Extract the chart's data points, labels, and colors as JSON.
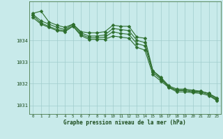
{
  "title": "Graphe pression niveau de la mer (hPa)",
  "background_color": "#c8eaea",
  "grid_color": "#a0cccc",
  "line_color": "#2d6e2d",
  "marker_color": "#2d6e2d",
  "xlim_min": -0.5,
  "xlim_max": 23.5,
  "ylim_min": 1030.6,
  "ylim_max": 1035.8,
  "yticks": [
    1031,
    1032,
    1033,
    1034
  ],
  "xticks": [
    0,
    1,
    2,
    3,
    4,
    5,
    6,
    7,
    8,
    9,
    10,
    11,
    12,
    13,
    14,
    15,
    16,
    17,
    18,
    19,
    20,
    21,
    22,
    23
  ],
  "series": [
    [
      1035.25,
      1035.35,
      1034.85,
      1034.7,
      1034.6,
      1034.75,
      1034.4,
      1034.35,
      1034.35,
      1034.4,
      1034.7,
      1034.65,
      1034.65,
      1034.15,
      1034.1,
      1032.6,
      1032.25,
      1031.85,
      1031.7,
      1031.7,
      1031.65,
      1031.65,
      1031.55,
      1031.3
    ],
    [
      1035.2,
      1034.9,
      1034.75,
      1034.6,
      1034.5,
      1034.75,
      1034.35,
      1034.2,
      1034.2,
      1034.25,
      1034.55,
      1034.5,
      1034.45,
      1034.0,
      1033.9,
      1032.6,
      1032.3,
      1031.9,
      1031.75,
      1031.75,
      1031.7,
      1031.65,
      1031.55,
      1031.35
    ],
    [
      1035.15,
      1034.8,
      1034.65,
      1034.5,
      1034.45,
      1034.68,
      1034.28,
      1034.12,
      1034.12,
      1034.15,
      1034.4,
      1034.32,
      1034.28,
      1033.85,
      1033.75,
      1032.52,
      1032.2,
      1031.85,
      1031.68,
      1031.68,
      1031.62,
      1031.6,
      1031.5,
      1031.25
    ],
    [
      1035.05,
      1034.75,
      1034.6,
      1034.45,
      1034.4,
      1034.65,
      1034.22,
      1034.05,
      1034.05,
      1034.05,
      1034.2,
      1034.15,
      1034.1,
      1033.68,
      1033.55,
      1032.42,
      1032.12,
      1031.82,
      1031.62,
      1031.62,
      1031.58,
      1031.55,
      1031.45,
      1031.22
    ]
  ],
  "marker_size": 2.5,
  "linewidth": 0.8,
  "title_fontsize": 5.5,
  "xlabel_fontsize": 4.2,
  "ylabel_fontsize": 5.0
}
